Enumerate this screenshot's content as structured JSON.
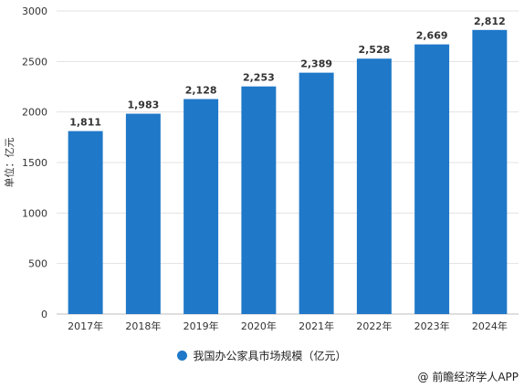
{
  "chart_data": {
    "type": "bar",
    "categories": [
      "2017年",
      "2018年",
      "2019年",
      "2020年",
      "2021年",
      "2022年",
      "2023年",
      "2024年"
    ],
    "series": [
      {
        "name": "我国办公家具市场规模（亿元）",
        "values": [
          1811,
          1983,
          2128,
          2253,
          2389,
          2528,
          2669,
          2812
        ]
      }
    ],
    "data_labels": [
      "1,811",
      "1,983",
      "2,128",
      "2,253",
      "2,389",
      "2,528",
      "2,669",
      "2,812"
    ],
    "ylabel": "单位：亿元",
    "ylim": [
      0,
      3000
    ],
    "yticks": [
      0,
      500,
      1000,
      1500,
      2000,
      2500,
      3000
    ],
    "grid": true,
    "legend_position": "bottom",
    "color": "#1f78c8"
  },
  "source": "@ 前瞻经济学人APP"
}
